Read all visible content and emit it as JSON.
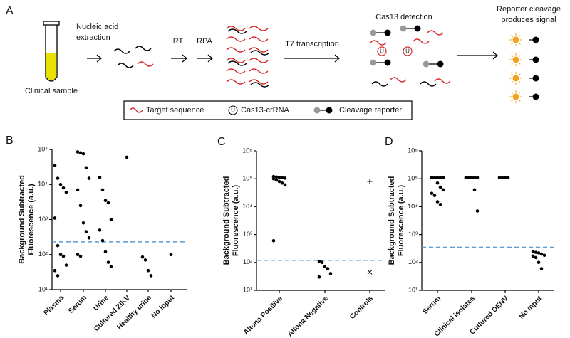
{
  "diagram": {
    "panel_label": "A",
    "clinical_sample": "Clinical sample",
    "extraction": [
      "Nucleic acid",
      "extraction"
    ],
    "rt": "RT",
    "rpa": "RPA",
    "t7": "T7 transcription",
    "cas13_detection": "Cas13 detection",
    "signal": [
      "Reporter cleavage",
      "produces signal"
    ],
    "crrna_letter": "U",
    "legend": [
      "Target sequence",
      "Cas13-crRNA",
      "Cleavage reporter"
    ]
  },
  "chart_data": [
    {
      "type": "strip",
      "panel": "B",
      "ylabel": [
        "Background Subtracted",
        "Fluorescence (a.u.)"
      ],
      "log_scale": true,
      "color": "#000000",
      "threshold": 230,
      "threshold_color": "#5b9bd5",
      "categories": [
        "Plasma",
        "Serum",
        "Urine",
        "Cultured ZIKV",
        "Healthy urine",
        "No input"
      ],
      "values": [
        [
          35000,
          15000,
          10000,
          8000,
          6000,
          1100,
          180,
          100,
          90,
          50,
          35,
          25
        ],
        [
          85000,
          80000,
          75000,
          30000,
          15000,
          7000,
          2500,
          800,
          450,
          300,
          100,
          90
        ],
        [
          16000,
          7000,
          3500,
          3000,
          1000,
          500,
          250,
          120,
          60,
          45
        ],
        [
          60000
        ],
        [
          85,
          70,
          35,
          25
        ],
        [
          100
        ]
      ],
      "ylim": [
        10,
        100000
      ],
      "yticks": [
        {
          "value": 10,
          "label": "10¹"
        },
        {
          "value": 100,
          "label": "10²"
        },
        {
          "value": 1000,
          "label": "10³"
        },
        {
          "value": 10000,
          "label": "10⁴"
        },
        {
          "value": 100000,
          "label": "10⁵"
        }
      ]
    },
    {
      "type": "strip",
      "panel": "C",
      "ylabel": [
        "Background Subtracted",
        "Fluorescence (a.u.)"
      ],
      "log_scale": true,
      "color": "#000000",
      "threshold": 120,
      "threshold_color": "#5b9bd5",
      "categories": [
        "Altona Positive",
        "Altona Negative",
        "Controls"
      ],
      "values": [
        [
          120000,
          115000,
          110000,
          110000,
          105000,
          100000,
          90000,
          80000,
          70000,
          60000,
          600
        ],
        [
          110,
          100,
          70,
          60,
          40,
          30
        ],
        [
          80000,
          45
        ]
      ],
      "point_symbols": {
        "2": [
          "plus",
          "cross"
        ]
      },
      "ylim": [
        10,
        1000000
      ],
      "yticks": [
        {
          "value": 10,
          "label": "10¹"
        },
        {
          "value": 100,
          "label": "10²"
        },
        {
          "value": 1000,
          "label": "10³"
        },
        {
          "value": 10000,
          "label": "10⁴"
        },
        {
          "value": 100000,
          "label": "10⁵"
        },
        {
          "value": 1000000,
          "label": "10⁶"
        }
      ]
    },
    {
      "type": "strip",
      "panel": "D",
      "ylabel": [
        "Background Subtracted",
        "Fluorescence (a.u.)"
      ],
      "log_scale": true,
      "color": "#000000",
      "threshold": 350,
      "threshold_color": "#5b9bd5",
      "categories": [
        "Serum",
        "Clinical isolates",
        "Cultured DENV",
        "No input"
      ],
      "values": [
        [
          110000,
          110000,
          110000,
          110000,
          110000,
          110000,
          110000,
          70000,
          50000,
          40000,
          30000,
          25000,
          15000,
          12000
        ],
        [
          110000,
          110000,
          110000,
          110000,
          110000,
          110000,
          110000,
          110000,
          40000,
          7000
        ],
        [
          110000,
          110000,
          110000,
          110000
        ],
        [
          250,
          230,
          220,
          200,
          180,
          170,
          150,
          100,
          60
        ]
      ],
      "ylim": [
        10,
        1000000
      ],
      "yticks": [
        {
          "value": 10,
          "label": "10¹"
        },
        {
          "value": 100,
          "label": "10²"
        },
        {
          "value": 1000,
          "label": "10³"
        },
        {
          "value": 10000,
          "label": "10⁴"
        },
        {
          "value": 100000,
          "label": "10⁵"
        },
        {
          "value": 1000000,
          "label": "10⁶"
        }
      ]
    }
  ]
}
